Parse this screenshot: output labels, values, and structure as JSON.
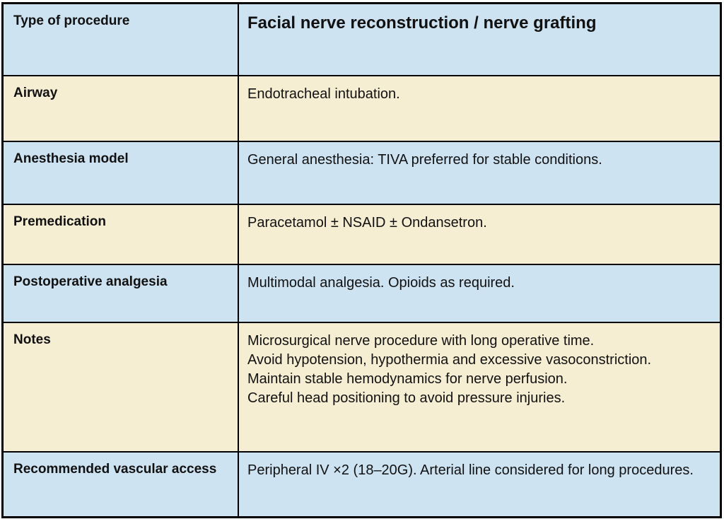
{
  "table": {
    "header": {
      "label": "Type of procedure",
      "value": "Facial nerve reconstruction / nerve grafting"
    },
    "rows": [
      {
        "label": "Airway",
        "value": "Endotracheal intubation."
      },
      {
        "label": "Anesthesia model",
        "value": "General anesthesia: TIVA preferred for stable conditions."
      },
      {
        "label": "Premedication",
        "value": "Paracetamol ± NSAID ± Ondansetron."
      },
      {
        "label": "Postoperative analgesia",
        "value": "Multimodal analgesia. Opioids as required."
      },
      {
        "label": "Notes",
        "value": "Microsurgical nerve procedure with long operative time.\nAvoid hypotension, hypothermia and excessive vasoconstriction.\nMaintain stable hemodynamics for nerve perfusion.\nCareful head positioning to avoid pressure injuries."
      },
      {
        "label": "Recommended vascular access",
        "value": "Peripheral IV ×2 (18–20G). Arterial line considered for long procedures."
      }
    ],
    "colors": {
      "row_blue": "#cee3f1",
      "row_cream": "#f5eed3",
      "border": "#000000",
      "text": "#111111"
    }
  }
}
